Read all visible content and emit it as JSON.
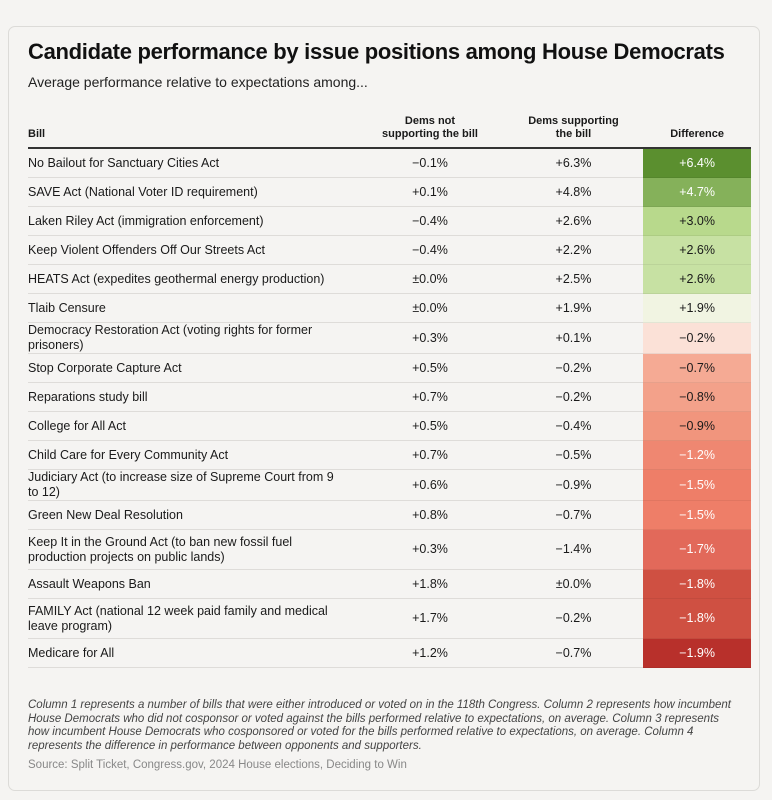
{
  "title": "Candidate performance by issue positions among House Democrats",
  "subtitle": "Average performance relative to expectations among...",
  "chart_data": {
    "type": "table",
    "columns": [
      "Bill",
      "Dems not supporting the bill",
      "Dems supporting the bill",
      "Difference"
    ],
    "rows": [
      {
        "bill": "No Bailout for Sanctuary Cities Act",
        "not_supporting": "−0.1%",
        "supporting": "+6.3%",
        "difference": "+6.4%",
        "color": "#5b8f2f",
        "light_text": true
      },
      {
        "bill": "SAVE Act (National Voter ID requirement)",
        "not_supporting": "+0.1%",
        "supporting": "+4.8%",
        "difference": "+4.7%",
        "color": "#85b15a",
        "light_text": true
      },
      {
        "bill": "Laken Riley Act (immigration enforcement)",
        "not_supporting": "−0.4%",
        "supporting": "+2.6%",
        "difference": "+3.0%",
        "color": "#b8d98c",
        "light_text": false
      },
      {
        "bill": "Keep Violent Offenders Off Our Streets Act",
        "not_supporting": "−0.4%",
        "supporting": "+2.2%",
        "difference": "+2.6%",
        "color": "#c7e1a3",
        "light_text": false
      },
      {
        "bill": "HEATS Act (expedites geothermal energy production)",
        "not_supporting": "±0.0%",
        "supporting": "+2.5%",
        "difference": "+2.6%",
        "color": "#c7e1a3",
        "light_text": false
      },
      {
        "bill": "Tlaib Censure",
        "not_supporting": "±0.0%",
        "supporting": "+1.9%",
        "difference": "+1.9%",
        "color": "#f1f4e2",
        "light_text": false
      },
      {
        "bill": "Democracy Restoration Act (voting rights for former prisoners)",
        "not_supporting": "+0.3%",
        "supporting": "+0.1%",
        "difference": "−0.2%",
        "color": "#fbe1d7",
        "light_text": false
      },
      {
        "bill": "Stop Corporate Capture Act",
        "not_supporting": "+0.5%",
        "supporting": "−0.2%",
        "difference": "−0.7%",
        "color": "#f5aa94",
        "light_text": false
      },
      {
        "bill": "Reparations study bill",
        "not_supporting": "+0.7%",
        "supporting": "−0.2%",
        "difference": "−0.8%",
        "color": "#f3a18a",
        "light_text": false
      },
      {
        "bill": "College for All Act",
        "not_supporting": "+0.5%",
        "supporting": "−0.4%",
        "difference": "−0.9%",
        "color": "#f1957d",
        "light_text": false
      },
      {
        "bill": "Child Care for Every Community Act",
        "not_supporting": "+0.7%",
        "supporting": "−0.5%",
        "difference": "−1.2%",
        "color": "#ef8771",
        "light_text": true
      },
      {
        "bill": "Judiciary Act (to increase size of Supreme Court from 9 to 12)",
        "not_supporting": "+0.6%",
        "supporting": "−0.9%",
        "difference": "−1.5%",
        "color": "#ee7e68",
        "light_text": true
      },
      {
        "bill": "Green New Deal Resolution",
        "not_supporting": "+0.8%",
        "supporting": "−0.7%",
        "difference": "−1.5%",
        "color": "#ee7e68",
        "light_text": true
      },
      {
        "bill": "Keep It in the Ground Act (to ban new fossil fuel production projects on public lands)",
        "not_supporting": "+0.3%",
        "supporting": "−1.4%",
        "difference": "−1.7%",
        "color": "#e2695a",
        "light_text": true
      },
      {
        "bill": "Assault Weapons Ban",
        "not_supporting": "+1.8%",
        "supporting": "±0.0%",
        "difference": "−1.8%",
        "color": "#cf5042",
        "light_text": true
      },
      {
        "bill": "FAMILY Act (national 12 week paid family and medical leave program)",
        "not_supporting": "+1.7%",
        "supporting": "−0.2%",
        "difference": "−1.8%",
        "color": "#cf5042",
        "light_text": true
      },
      {
        "bill": "Medicare for All",
        "not_supporting": "+1.2%",
        "supporting": "−0.7%",
        "difference": "−1.9%",
        "color": "#b8302b",
        "light_text": true
      }
    ]
  },
  "notes": "Column 1 represents a number of bills that were either introduced or voted on in the 118th Congress. Column 2 represents how incumbent House Democrats who did not cosponsor or voted against the bills performed relative to expectations, on average. Column 3 represents how incumbent House Democrats who cosponsored or voted for the bills performed relative to expectations, on average. Column 4 represents the difference in performance between opponents and supporters.",
  "source": "Source: Split Ticket, Congress.gov, 2024 House elections, Deciding to Win"
}
